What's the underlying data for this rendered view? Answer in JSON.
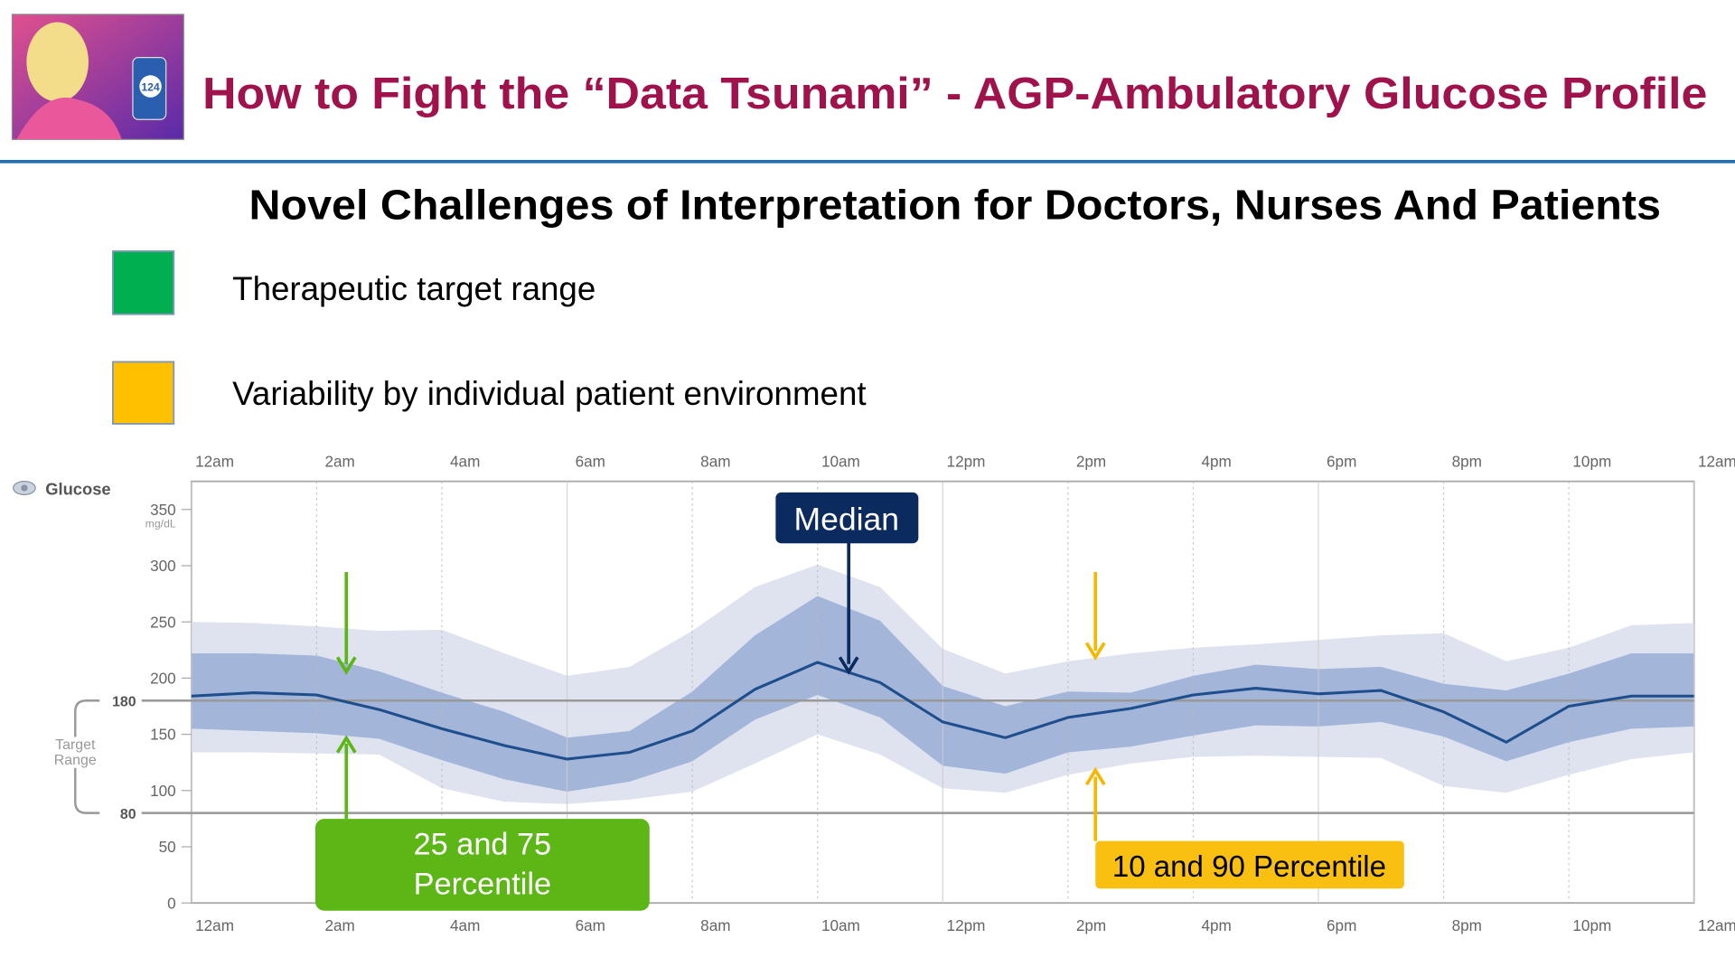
{
  "header": {
    "title": "How to Fight the “Data Tsunami” - AGP-Ambulatory Glucose Profile",
    "icon_text": "124"
  },
  "subtitle": "Novel Challenges of Interpretation for Doctors, Nurses And Patients",
  "legend": [
    {
      "label": "Therapeutic target range",
      "color": "#00b050"
    },
    {
      "label": "Variability by individual patient environment",
      "color": "#ffc000"
    }
  ],
  "chart_data": {
    "type": "agp",
    "y_label": "Glucose",
    "y_unit": "mg/dL",
    "x": [
      0,
      1,
      2,
      3,
      4,
      5,
      6,
      7,
      8,
      9,
      10,
      11,
      12,
      13,
      14,
      15,
      16,
      17,
      18,
      19,
      20,
      21,
      22,
      23,
      24
    ],
    "xlim": [
      0,
      24
    ],
    "xticks": [
      {
        "value": 0,
        "label": "12am"
      },
      {
        "value": 2,
        "label": "2am"
      },
      {
        "value": 4,
        "label": "4am"
      },
      {
        "value": 6,
        "label": "6am"
      },
      {
        "value": 8,
        "label": "8am"
      },
      {
        "value": 10,
        "label": "10am"
      },
      {
        "value": 12,
        "label": "12pm"
      },
      {
        "value": 14,
        "label": "2pm"
      },
      {
        "value": 16,
        "label": "4pm"
      },
      {
        "value": 18,
        "label": "6pm"
      },
      {
        "value": 20,
        "label": "8pm"
      },
      {
        "value": 22,
        "label": "10pm"
      },
      {
        "value": 24,
        "label": "12am"
      }
    ],
    "ylim": [
      0,
      375
    ],
    "yticks": [
      0,
      50,
      100,
      150,
      200,
      250,
      300,
      350
    ],
    "grid": true,
    "target_range": {
      "label": "Target Range",
      "low": 80,
      "high": 180
    },
    "bands": [
      {
        "name": "10 and 90 Percentile",
        "color": "#dfe3ef",
        "low": [
          134,
          134,
          133,
          132,
          102,
          90,
          88,
          92,
          99,
          124,
          150,
          132,
          102,
          98,
          114,
          124,
          130,
          131,
          130,
          129,
          104,
          98,
          114,
          128,
          134
        ],
        "high": [
          250,
          249,
          246,
          242,
          243,
          222,
          202,
          210,
          242,
          281,
          301,
          281,
          226,
          204,
          215,
          222,
          227,
          230,
          234,
          238,
          240,
          215,
          227,
          247,
          249
        ]
      },
      {
        "name": "25 and 75 Percentile",
        "color": "#a3b5d9",
        "low": [
          155,
          153,
          151,
          146,
          127,
          110,
          99,
          108,
          126,
          163,
          185,
          165,
          122,
          115,
          134,
          139,
          149,
          158,
          157,
          161,
          148,
          126,
          143,
          155,
          157
        ],
        "high": [
          222,
          222,
          220,
          206,
          187,
          170,
          147,
          153,
          188,
          238,
          273,
          251,
          193,
          175,
          188,
          187,
          202,
          212,
          208,
          210,
          195,
          189,
          204,
          222,
          222
        ]
      }
    ],
    "median": {
      "name": "Median",
      "color": "#1f4e8c",
      "values": [
        184,
        187,
        185,
        172,
        155,
        140,
        128,
        134,
        153,
        190,
        214,
        196,
        161,
        147,
        165,
        173,
        185,
        191,
        186,
        189,
        170,
        143,
        175,
        184,
        184
      ]
    }
  }
}
